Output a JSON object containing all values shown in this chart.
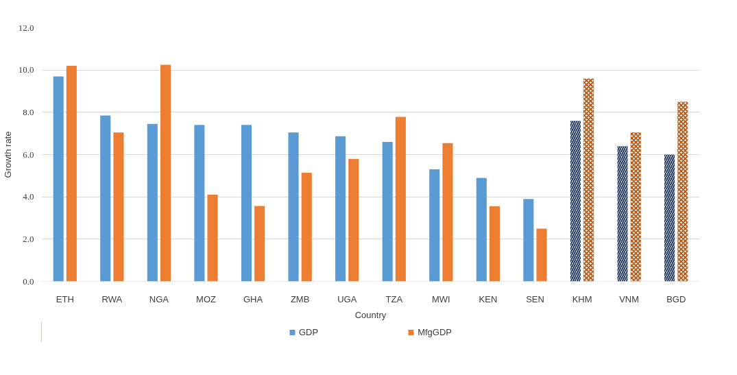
{
  "chart_data": {
    "type": "bar",
    "xlabel": "Country",
    "ylabel": "Growth rate",
    "categories": [
      "ETH",
      "RWA",
      "NGA",
      "MOZ",
      "GHA",
      "ZMB",
      "UGA",
      "TZA",
      "MWI",
      "KEN",
      "SEN",
      "KHM",
      "VNM",
      "BGD"
    ],
    "series": [
      {
        "name": "GDP",
        "color": "#5b9bd5",
        "colors": [
          "#5b9bd5",
          "#5b9bd5",
          "#5b9bd5",
          "#5b9bd5",
          "#5b9bd5",
          "#5b9bd5",
          "#5b9bd5",
          "#5b9bd5",
          "#5b9bd5",
          "#5b9bd5",
          "#5b9bd5",
          "#1f3864",
          "#1f3864",
          "#1f3864"
        ],
        "values": [
          9.7,
          7.85,
          7.45,
          7.4,
          7.4,
          7.05,
          6.87,
          6.6,
          5.3,
          4.9,
          3.9,
          7.6,
          6.4,
          6.0
        ]
      },
      {
        "name": "MfgGDP",
        "color": "#ed7d31",
        "colors": [
          "#ed7d31",
          "#ed7d31",
          "#ed7d31",
          "#ed7d31",
          "#ed7d31",
          "#ed7d31",
          "#ed7d31",
          "#ed7d31",
          "#ed7d31",
          "#ed7d31",
          "#ed7d31",
          "#c55a11",
          "#c55a11",
          "#c55a11"
        ],
        "values": [
          10.2,
          7.05,
          10.25,
          4.1,
          3.57,
          5.14,
          5.8,
          7.78,
          6.54,
          3.56,
          2.5,
          9.6,
          7.05,
          8.5
        ]
      }
    ],
    "ylim": [
      0,
      12
    ],
    "yticks": [
      {
        "value": 0,
        "label": "0.0"
      },
      {
        "value": 2,
        "label": "2.0"
      },
      {
        "value": 4,
        "label": "4.0"
      },
      {
        "value": 6,
        "label": "6.0"
      },
      {
        "value": 8,
        "label": "8.0"
      },
      {
        "value": 10,
        "label": "10.0"
      },
      {
        "value": 12,
        "label": "12.0"
      }
    ],
    "grid": "y",
    "legend": "bottom"
  }
}
